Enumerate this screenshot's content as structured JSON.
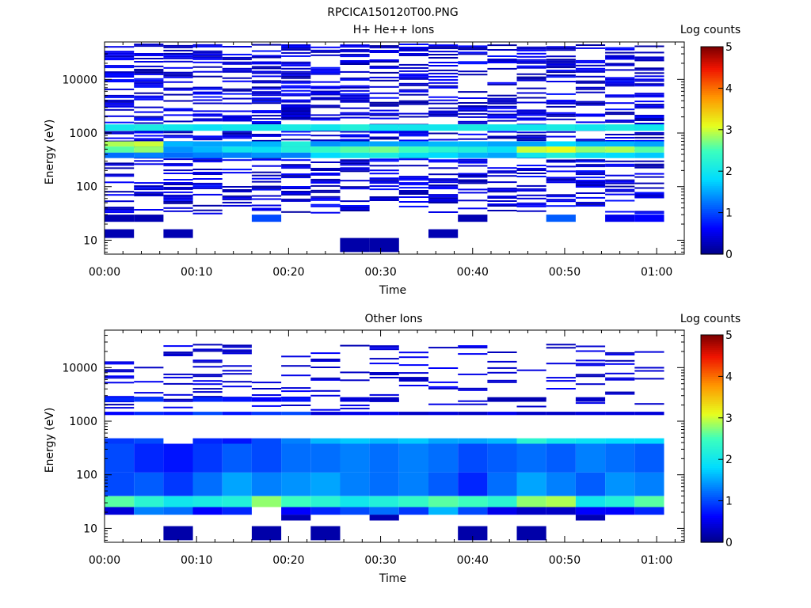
{
  "figure_title": "RPCICA150120T00.PNG",
  "chart_data": [
    {
      "type": "heatmap",
      "title": "H+ He++ Ions",
      "xlabel": "Time",
      "ylabel": "Energy (eV)",
      "colorbar_label": "Log counts",
      "x_ticks": [
        "00:00",
        "00:10",
        "00:20",
        "00:30",
        "00:40",
        "00:50",
        "01:00"
      ],
      "x_tick_minutes": [
        0,
        10,
        20,
        30,
        40,
        50,
        60
      ],
      "xlim_minutes": [
        0,
        63
      ],
      "y_scale": "log",
      "ylim": [
        5.5,
        50000
      ],
      "y_ticks": [
        10,
        100,
        1000,
        10000
      ],
      "y_tick_labels": [
        "10",
        "100",
        "1000",
        "10000"
      ],
      "colorbar_ticks": [
        0,
        1,
        2,
        3,
        4,
        5
      ],
      "zlim": [
        0,
        5
      ],
      "time_bin_minutes": 3.2,
      "bands": [
        {
          "e_lo": 1100,
          "e_hi": 1450,
          "values": [
            2.0,
            2.1,
            2.0,
            1.9,
            2.0,
            2.0,
            2.1,
            2.0,
            2.2,
            2.0,
            2.0,
            2.0,
            2.1,
            2.0,
            2.0,
            2.1,
            2.0,
            2.1,
            2.0
          ]
        },
        {
          "e_lo": 560,
          "e_hi": 700,
          "values": [
            2.9,
            3.0,
            1.6,
            1.5,
            1.5,
            1.6,
            2.2,
            1.4,
            1.5,
            1.5,
            1.5,
            1.6,
            1.6,
            1.5,
            1.5,
            1.8,
            1.6,
            1.6,
            1.5
          ]
        },
        {
          "e_lo": 430,
          "e_hi": 560,
          "values": [
            2.6,
            2.8,
            1.4,
            1.6,
            2.0,
            1.9,
            2.2,
            2.4,
            2.6,
            2.7,
            2.5,
            2.3,
            2.2,
            1.9,
            3.0,
            3.1,
            2.8,
            2.9,
            2.6
          ]
        },
        {
          "e_lo": 340,
          "e_hi": 430,
          "values": [
            1.2,
            1.3,
            1.2,
            1.3,
            1.3,
            1.4,
            1.3,
            1.8,
            2.0,
            2.1,
            1.9,
            1.8,
            1.6,
            1.5,
            2.0,
            2.2,
            1.9,
            1.8,
            1.7
          ]
        },
        {
          "e_lo": 22,
          "e_hi": 30,
          "values": [
            0.2,
            0.2,
            null,
            null,
            null,
            1.0,
            null,
            null,
            null,
            null,
            null,
            null,
            0.2,
            null,
            null,
            1.1,
            null,
            0.5,
            0.6
          ]
        },
        {
          "e_lo": 11,
          "e_hi": 16,
          "values": [
            0.2,
            null,
            0.2,
            null,
            null,
            null,
            null,
            null,
            null,
            null,
            null,
            0.2,
            null,
            null,
            null,
            null,
            null,
            null,
            null
          ]
        },
        {
          "e_lo": 6,
          "e_hi": 11,
          "values": [
            null,
            null,
            null,
            null,
            null,
            null,
            null,
            null,
            0.15,
            0.15,
            null,
            null,
            null,
            null,
            null,
            null,
            null,
            null,
            null
          ]
        }
      ],
      "sparse_band": {
        "e_lo": 30,
        "e_hi": 45000,
        "level_range": [
          0.1,
          0.7
        ]
      }
    },
    {
      "type": "heatmap",
      "title": "Other Ions",
      "xlabel": "Time",
      "ylabel": "Energy (eV)",
      "colorbar_label": "Log counts",
      "x_ticks": [
        "00:00",
        "00:10",
        "00:20",
        "00:30",
        "00:40",
        "00:50",
        "01:00"
      ],
      "x_tick_minutes": [
        0,
        10,
        20,
        30,
        40,
        50,
        60
      ],
      "xlim_minutes": [
        0,
        63
      ],
      "y_scale": "log",
      "ylim": [
        5.5,
        50000
      ],
      "y_ticks": [
        10,
        100,
        1000,
        10000
      ],
      "y_tick_labels": [
        "10",
        "100",
        "1000",
        "10000"
      ],
      "colorbar_ticks": [
        0,
        1,
        2,
        3,
        4,
        5
      ],
      "zlim": [
        0,
        5
      ],
      "time_bin_minutes": 3.2,
      "bands": [
        {
          "e_lo": 2300,
          "e_hi": 2800,
          "values": [
            0.8,
            0.9,
            null,
            0.8,
            0.7,
            0.6,
            0.7,
            null,
            0.4,
            0.3,
            null,
            null,
            null,
            0.2,
            0.2,
            null,
            0.3,
            null,
            null
          ]
        },
        {
          "e_lo": 1300,
          "e_hi": 1500,
          "values": [
            0.6,
            0.8,
            0.7,
            1.0,
            0.7,
            0.9,
            1.0,
            0.4,
            0.5,
            0.5,
            0.3,
            0.4,
            0.3,
            0.5,
            0.3,
            0.3,
            0.4,
            0.4,
            0.4
          ]
        },
        {
          "e_lo": 380,
          "e_hi": 480,
          "values": [
            0.9,
            1.0,
            null,
            0.8,
            0.7,
            1.0,
            1.3,
            1.6,
            1.7,
            1.6,
            1.7,
            1.5,
            1.5,
            1.6,
            2.3,
            2.0,
            1.9,
            1.8,
            1.8
          ]
        },
        {
          "e_lo": 110,
          "e_hi": 380,
          "values": [
            1.0,
            0.8,
            0.7,
            0.9,
            1.1,
            1.0,
            1.2,
            1.2,
            1.3,
            1.2,
            1.3,
            1.2,
            1.0,
            1.1,
            1.2,
            1.1,
            1.3,
            1.2,
            1.1
          ]
        },
        {
          "e_lo": 40,
          "e_hi": 110,
          "values": [
            1.0,
            1.1,
            0.9,
            1.2,
            1.5,
            1.3,
            1.4,
            1.5,
            1.3,
            1.2,
            1.3,
            1.1,
            0.8,
            1.2,
            1.5,
            1.3,
            1.1,
            1.4,
            1.3
          ]
        },
        {
          "e_lo": 25,
          "e_hi": 40,
          "values": [
            2.6,
            2.3,
            2.0,
            2.1,
            2.2,
            2.8,
            2.5,
            2.3,
            2.0,
            2.2,
            2.4,
            2.6,
            2.5,
            2.3,
            2.8,
            2.9,
            2.0,
            2.2,
            2.6
          ]
        },
        {
          "e_lo": 18,
          "e_hi": 25,
          "values": [
            0.4,
            1.3,
            1.2,
            0.6,
            0.8,
            null,
            0.6,
            0.8,
            1.0,
            1.2,
            0.9,
            1.6,
            1.0,
            0.5,
            0.3,
            0.3,
            0.6,
            0.6,
            0.8
          ]
        },
        {
          "e_lo": 14,
          "e_hi": 18,
          "values": [
            null,
            null,
            null,
            null,
            null,
            null,
            0.2,
            null,
            null,
            0.2,
            null,
            null,
            null,
            null,
            null,
            null,
            0.2,
            null,
            null
          ]
        },
        {
          "e_lo": 6,
          "e_hi": 11,
          "values": [
            null,
            null,
            0.15,
            null,
            null,
            0.15,
            null,
            0.15,
            null,
            null,
            null,
            null,
            0.15,
            null,
            0.15,
            null,
            null,
            null,
            null
          ]
        }
      ],
      "sparse_band": {
        "e_lo": 1500,
        "e_hi": 26000,
        "level_range": [
          0.2,
          0.6
        ]
      }
    }
  ]
}
